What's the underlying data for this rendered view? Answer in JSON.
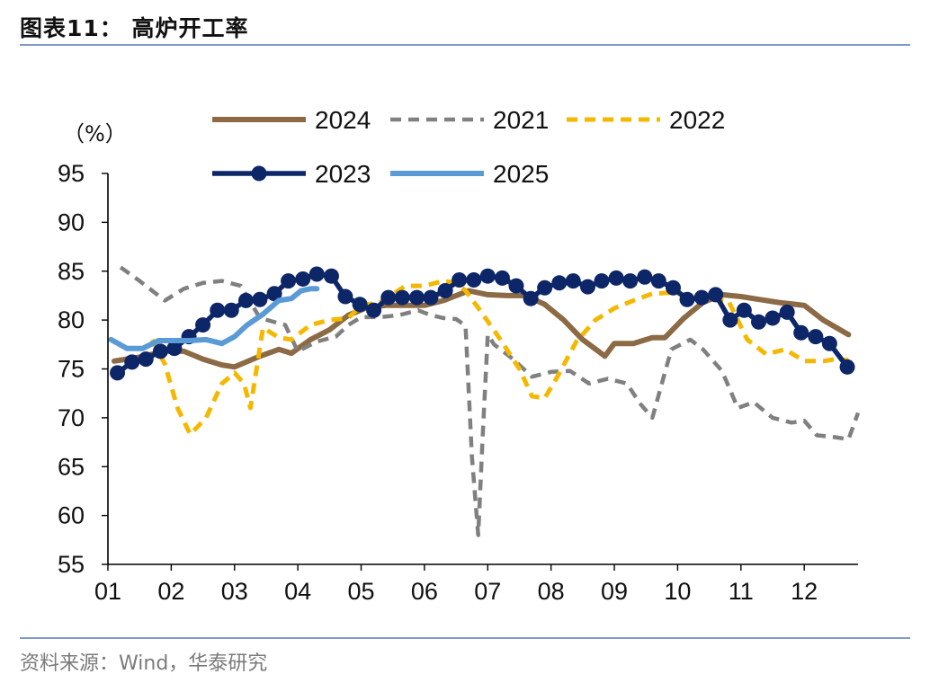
{
  "figure": {
    "title": "图表11：  高炉开工率",
    "source": "资料来源：Wind，华泰研究"
  },
  "chart_data": {
    "type": "line",
    "ylabel": "（%）",
    "ylim": [
      55,
      95
    ],
    "yticks": [
      55,
      60,
      65,
      70,
      75,
      80,
      85,
      90,
      95
    ],
    "xlim": [
      1,
      12.85
    ],
    "xticks": [
      "01",
      "02",
      "03",
      "04",
      "05",
      "06",
      "07",
      "08",
      "09",
      "10",
      "11",
      "12"
    ],
    "legend_order": [
      "2024",
      "2021",
      "2022",
      "2023",
      "2025"
    ],
    "legend_position": "top",
    "grid": false,
    "series": [
      {
        "name": "2024",
        "color": "#8c6a45",
        "style": "solid",
        "width": 6,
        "markers": false,
        "x": [
          1.1,
          1.5,
          1.9,
          2.2,
          2.5,
          2.8,
          3.0,
          3.4,
          3.7,
          3.9,
          4.2,
          4.5,
          4.8,
          5.1,
          5.4,
          5.7,
          6.0,
          6.3,
          6.7,
          7.0,
          7.3,
          7.6,
          7.9,
          8.2,
          8.5,
          8.75,
          8.85,
          9.0,
          9.3,
          9.6,
          9.8,
          10.1,
          10.4,
          10.7,
          11.0,
          11.3,
          11.6,
          12.0,
          12.3,
          12.7
        ],
        "y": [
          75.8,
          76.2,
          76.8,
          76.8,
          76.0,
          75.4,
          75.2,
          76.3,
          77.0,
          76.6,
          78.0,
          79.0,
          80.5,
          81.3,
          81.5,
          81.5,
          81.5,
          82.0,
          83.0,
          82.6,
          82.5,
          82.5,
          81.6,
          80.0,
          78.0,
          76.8,
          76.3,
          77.6,
          77.6,
          78.2,
          78.2,
          80.2,
          81.8,
          82.6,
          82.4,
          82.1,
          81.8,
          81.5,
          80.0,
          78.5
        ]
      },
      {
        "name": "2021",
        "color": "#808080",
        "style": "dash",
        "width": 4.5,
        "markers": false,
        "x": [
          1.2,
          1.5,
          1.9,
          2.2,
          2.5,
          2.8,
          3.1,
          3.4,
          3.8,
          4.0,
          4.3,
          4.6,
          4.8,
          5.0,
          5.3,
          5.6,
          5.9,
          6.1,
          6.3,
          6.5,
          6.65,
          6.75,
          6.85,
          6.92,
          7.0,
          7.1,
          7.4,
          7.7,
          8.0,
          8.3,
          8.6,
          8.9,
          9.2,
          9.4,
          9.6,
          9.9,
          10.2,
          10.4,
          10.7,
          10.95,
          11.2,
          11.5,
          11.8,
          12.0,
          12.2,
          12.5,
          12.7,
          12.85
        ],
        "y": [
          85.4,
          84.0,
          82.0,
          83.2,
          83.8,
          84.0,
          83.5,
          80.2,
          79.5,
          76.8,
          77.8,
          78.3,
          79.5,
          80.3,
          80.3,
          80.5,
          81.0,
          80.5,
          80.2,
          80.1,
          79.4,
          66.0,
          58.0,
          68.0,
          78.5,
          77.5,
          76.0,
          74.2,
          74.7,
          74.8,
          73.5,
          74.0,
          73.5,
          71.5,
          70.0,
          77.0,
          78.0,
          77.0,
          74.8,
          71.0,
          71.6,
          70.0,
          69.5,
          69.7,
          68.2,
          68.0,
          67.8,
          70.5
        ]
      },
      {
        "name": "2022",
        "color": "#f5b800",
        "style": "dash",
        "width": 5,
        "markers": false,
        "x": [
          1.7,
          1.9,
          2.1,
          2.3,
          2.55,
          2.8,
          3.0,
          3.15,
          3.25,
          3.45,
          3.7,
          3.9,
          4.2,
          4.5,
          4.8,
          5.0,
          5.3,
          5.7,
          6.0,
          6.3,
          6.5,
          6.65,
          6.9,
          7.2,
          7.5,
          7.7,
          7.9,
          8.1,
          8.4,
          8.7,
          9.0,
          9.3,
          9.6,
          9.9,
          10.2,
          10.5,
          10.8,
          11.1,
          11.4,
          11.7,
          12.0,
          12.3,
          12.5,
          12.7
        ],
        "y": [
          78.0,
          75.5,
          71.0,
          68.3,
          70.0,
          73.5,
          74.6,
          73.5,
          71.0,
          79.2,
          78.2,
          78.0,
          79.5,
          80.0,
          80.2,
          81.5,
          81.8,
          83.5,
          83.5,
          84.0,
          83.8,
          83.0,
          80.8,
          78.0,
          75.0,
          72.2,
          72.0,
          74.2,
          77.8,
          80.0,
          81.2,
          82.0,
          82.7,
          82.8,
          82.5,
          82.2,
          82.0,
          78.0,
          76.5,
          77.0,
          75.8,
          75.8,
          76.0,
          75.9
        ]
      },
      {
        "name": "2023",
        "color": "#0d2667",
        "style": "solid",
        "width": 5.5,
        "markers": true,
        "x": [
          1.15,
          1.38,
          1.6,
          1.83,
          2.05,
          2.28,
          2.5,
          2.73,
          2.95,
          3.18,
          3.4,
          3.63,
          3.85,
          4.08,
          4.3,
          4.53,
          4.75,
          4.98,
          5.2,
          5.43,
          5.65,
          5.88,
          6.1,
          6.33,
          6.55,
          6.78,
          7.0,
          7.23,
          7.45,
          7.68,
          7.9,
          8.13,
          8.35,
          8.58,
          8.8,
          9.03,
          9.25,
          9.48,
          9.7,
          9.93,
          10.15,
          10.38,
          10.6,
          10.83,
          11.05,
          11.28,
          11.5,
          11.73,
          11.95,
          12.18,
          12.4,
          12.68
        ],
        "y": [
          74.6,
          75.7,
          76.0,
          76.8,
          77.1,
          78.3,
          79.5,
          81.0,
          81.0,
          82.0,
          82.1,
          82.7,
          84.0,
          84.2,
          84.7,
          84.5,
          82.4,
          81.6,
          81.0,
          82.3,
          82.3,
          82.3,
          82.3,
          83.0,
          84.1,
          84.1,
          84.5,
          84.3,
          83.5,
          82.2,
          83.3,
          83.8,
          84.0,
          83.4,
          84.0,
          84.3,
          84.0,
          84.4,
          84.0,
          83.3,
          82.1,
          82.3,
          82.6,
          80.0,
          81.0,
          79.8,
          80.2,
          80.8,
          78.7,
          78.3,
          77.6,
          75.2
        ]
      },
      {
        "name": "2025",
        "color": "#5b9bd5",
        "style": "solid",
        "width": 6,
        "markers": false,
        "x": [
          1.05,
          1.3,
          1.55,
          1.8,
          2.05,
          2.3,
          2.55,
          2.8,
          3.0,
          3.2,
          3.45,
          3.7,
          3.9,
          4.05,
          4.2,
          4.3
        ],
        "y": [
          78.0,
          77.1,
          77.1,
          77.9,
          77.9,
          77.9,
          78.0,
          77.6,
          78.3,
          79.5,
          80.6,
          82.0,
          82.2,
          83.0,
          83.2,
          83.2
        ]
      }
    ]
  }
}
